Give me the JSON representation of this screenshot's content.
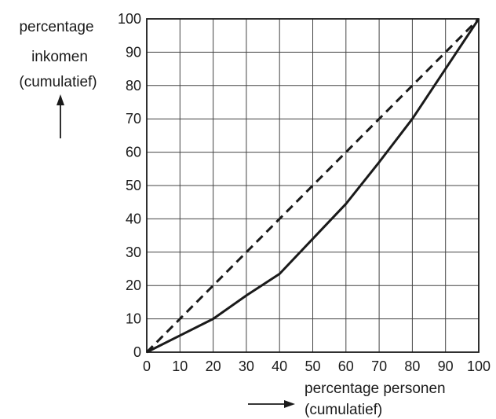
{
  "chart_data": {
    "type": "line",
    "title": "",
    "ylabel_lines": [
      "percentage",
      "inkomen",
      "(cumulatief)"
    ],
    "xlabel_lines": [
      "percentage personen",
      "(cumulatief)"
    ],
    "xlim": [
      0,
      100
    ],
    "ylim": [
      0,
      100
    ],
    "xticks": [
      0,
      10,
      20,
      30,
      40,
      50,
      60,
      70,
      80,
      90,
      100
    ],
    "yticks": [
      0,
      10,
      20,
      30,
      40,
      50,
      60,
      70,
      80,
      90,
      100
    ],
    "grid": true,
    "series": [
      {
        "style": "dashed",
        "color": "#1a1a1a",
        "x": [
          0,
          100
        ],
        "y": [
          0,
          100
        ]
      },
      {
        "style": "solid",
        "color": "#1a1a1a",
        "x": [
          0,
          10,
          20,
          30,
          40,
          50,
          60,
          70,
          80,
          90,
          100
        ],
        "y": [
          0,
          5,
          10,
          17,
          23.5,
          34,
          44.5,
          57,
          70,
          85,
          100
        ]
      }
    ]
  }
}
